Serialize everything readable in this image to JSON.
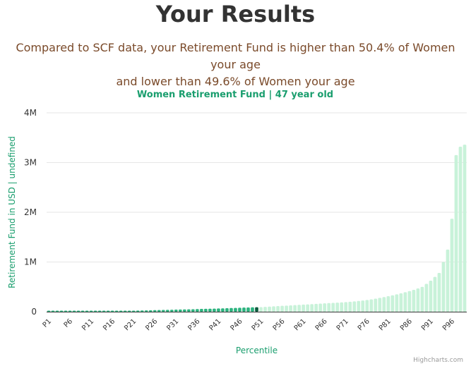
{
  "page": {
    "title": "Your Results",
    "summary_line1": "Compared to SCF data, your Retirement Fund is higher than 50.4% of Women your age",
    "summary_line2": "and lower than 49.6% of Women your age"
  },
  "colors": {
    "title": "#333333",
    "summary": "#7a4a2a",
    "accent": "#1a9e6e",
    "bar_below": "#2db37f",
    "bar_highlight": "#0d5c3f",
    "bar_above": "#c8f2d9",
    "grid": "#e6e6e6",
    "axis_text": "#333333",
    "credit": "#999999"
  },
  "chart_data": {
    "type": "bar",
    "title": "Women Retirement Fund | 47 year old",
    "xlabel": "Percentile",
    "ylabel": "Retirement Fund in USD | undefined",
    "ylim": [
      0,
      4000000
    ],
    "yticks": [
      0,
      1000000,
      2000000,
      3000000,
      4000000
    ],
    "ytick_labels": [
      "0",
      "1M",
      "2M",
      "3M",
      "4M"
    ],
    "categories": [
      "P1",
      "P2",
      "P3",
      "P4",
      "P5",
      "P6",
      "P7",
      "P8",
      "P9",
      "P10",
      "P11",
      "P12",
      "P13",
      "P14",
      "P15",
      "P16",
      "P17",
      "P18",
      "P19",
      "P20",
      "P21",
      "P22",
      "P23",
      "P24",
      "P25",
      "P26",
      "P27",
      "P28",
      "P29",
      "P30",
      "P31",
      "P32",
      "P33",
      "P34",
      "P35",
      "P36",
      "P37",
      "P38",
      "P39",
      "P40",
      "P41",
      "P42",
      "P43",
      "P44",
      "P45",
      "P46",
      "P47",
      "P48",
      "P49",
      "P50",
      "P51",
      "P52",
      "P53",
      "P54",
      "P55",
      "P56",
      "P57",
      "P58",
      "P59",
      "P60",
      "P61",
      "P62",
      "P63",
      "P64",
      "P65",
      "P66",
      "P67",
      "P68",
      "P69",
      "P70",
      "P71",
      "P72",
      "P73",
      "P74",
      "P75",
      "P76",
      "P77",
      "P78",
      "P79",
      "P80",
      "P81",
      "P82",
      "P83",
      "P84",
      "P85",
      "P86",
      "P87",
      "P88",
      "P89",
      "P90",
      "P91",
      "P92",
      "P93",
      "P94",
      "P95",
      "P96",
      "P97",
      "P98",
      "P99"
    ],
    "xtick_labels": [
      "P1",
      "P6",
      "P11",
      "P16",
      "P21",
      "P26",
      "P31",
      "P36",
      "P41",
      "P46",
      "P51",
      "P56",
      "P61",
      "P66",
      "P71",
      "P76",
      "P81",
      "P86",
      "P91",
      "P96"
    ],
    "values": [
      0,
      0,
      0,
      0,
      0,
      2000,
      3000,
      4000,
      5000,
      6000,
      8000,
      9000,
      10000,
      11000,
      13000,
      15000,
      16000,
      17000,
      18000,
      20000,
      21000,
      23000,
      25000,
      27000,
      29000,
      31000,
      33000,
      35000,
      37000,
      39000,
      42000,
      44000,
      46000,
      48000,
      50000,
      53000,
      56000,
      58000,
      60000,
      62000,
      65000,
      68000,
      71000,
      74000,
      77000,
      80000,
      83000,
      86000,
      88000,
      90000,
      93000,
      98000,
      103000,
      108000,
      113000,
      118000,
      123000,
      128000,
      133000,
      138000,
      143000,
      148000,
      153000,
      158000,
      163000,
      168000,
      173000,
      178000,
      183000,
      188000,
      193000,
      200000,
      208000,
      216000,
      225000,
      235000,
      248000,
      262000,
      278000,
      295000,
      312000,
      330000,
      350000,
      370000,
      392000,
      415000,
      440000,
      468000,
      500000,
      560000,
      625000,
      700000,
      780000,
      1000000,
      1250000,
      1870000,
      3150000,
      3320000,
      3360000
    ],
    "highlight_index": 49,
    "grid": true,
    "legend": "none"
  },
  "credit": "Highcharts.com"
}
